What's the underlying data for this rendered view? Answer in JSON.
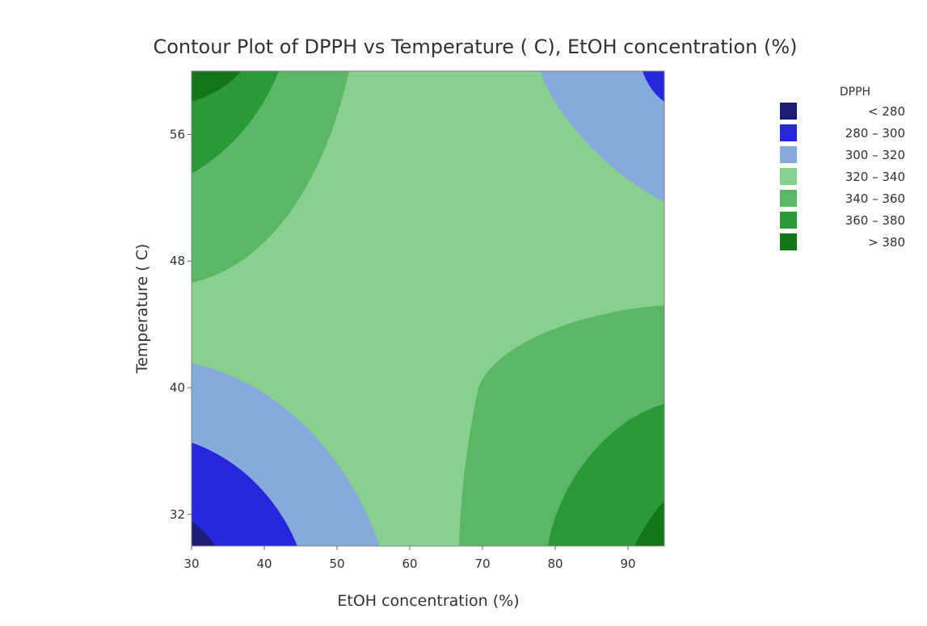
{
  "chart_data": {
    "type": "contour",
    "title": "Contour Plot of DPPH vs Temperature ( C), EtOH concentration (%)",
    "x_label": "EtOH concentration (%)",
    "y_label": "Temperature ( C)",
    "xlim": [
      30,
      95
    ],
    "xticks": [
      30,
      40,
      50,
      60,
      70,
      80,
      90
    ],
    "ylim": [
      30,
      60
    ],
    "yticks": [
      32,
      40,
      48,
      56
    ],
    "legend_title": "DPPH",
    "legend_position": "right",
    "levels": [
      {
        "label": "< 280",
        "upper": 280,
        "color": "#1b1b78"
      },
      {
        "label": "280 – 300",
        "lower": 280,
        "upper": 300,
        "color": "#2626dc"
      },
      {
        "label": "300 – 320",
        "lower": 300,
        "upper": 320,
        "color": "#86aadc"
      },
      {
        "label": "320 – 340",
        "lower": 320,
        "upper": 340,
        "color": "#88d08e"
      },
      {
        "label": "340 – 360",
        "lower": 340,
        "upper": 360,
        "color": "#5bb765"
      },
      {
        "label": "360 – 380",
        "lower": 360,
        "upper": 380,
        "color": "#2a9a38"
      },
      {
        "label": "> 380",
        "lower": 380,
        "color": "#137619"
      }
    ]
  }
}
